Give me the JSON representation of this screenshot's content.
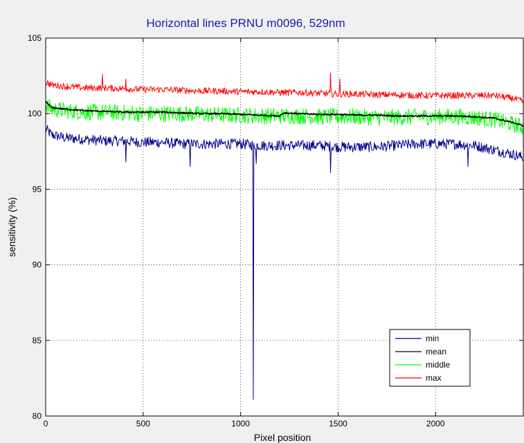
{
  "chart_data": {
    "type": "line",
    "title": "Horizontal lines PRNU m0096, 529nm",
    "xlabel": "Pixel position",
    "ylabel": "sensitivity (%)",
    "xlim": [
      0,
      2450
    ],
    "ylim": [
      80,
      105
    ],
    "x_ticks": [
      0,
      500,
      1000,
      1500,
      2000
    ],
    "y_ticks": [
      80,
      85,
      90,
      95,
      100,
      105
    ],
    "grid": true,
    "legend_position": "bottom-right",
    "series": [
      {
        "name": "min",
        "color": "#00008b",
        "noise": 0.35,
        "x": [
          0,
          30,
          100,
          200,
          300,
          400,
          500,
          600,
          700,
          800,
          900,
          1000,
          1100,
          1200,
          1300,
          1400,
          1500,
          1600,
          1700,
          1800,
          1900,
          2000,
          2100,
          2200,
          2300,
          2400,
          2450
        ],
        "y": [
          99.0,
          98.6,
          98.4,
          98.3,
          98.2,
          98.2,
          98.1,
          98.1,
          98.0,
          98.0,
          98.0,
          98.0,
          97.9,
          97.9,
          97.9,
          97.9,
          97.8,
          97.8,
          97.8,
          97.9,
          98.0,
          98.0,
          98.0,
          97.9,
          97.6,
          97.3,
          97.1
        ],
        "spikes": [
          [
            410,
            96.8
          ],
          [
            740,
            96.5
          ],
          [
            1065,
            81.1
          ],
          [
            1080,
            96.7
          ],
          [
            1460,
            96.1
          ],
          [
            2165,
            96.5
          ]
        ]
      },
      {
        "name": "mean",
        "color": "#000000",
        "noise": 0.05,
        "x": [
          0,
          30,
          100,
          200,
          300,
          400,
          500,
          600,
          700,
          800,
          900,
          1000,
          1100,
          1200,
          1220,
          1300,
          1400,
          1500,
          1600,
          1700,
          1800,
          1900,
          2000,
          2100,
          2200,
          2300,
          2400,
          2450
        ],
        "y": [
          100.8,
          100.4,
          100.3,
          100.2,
          100.15,
          100.1,
          100.1,
          100.1,
          100.05,
          100.0,
          100.0,
          99.95,
          99.9,
          99.85,
          100.05,
          100.0,
          99.95,
          99.95,
          99.9,
          99.9,
          99.85,
          99.85,
          99.85,
          99.85,
          99.8,
          99.7,
          99.4,
          99.2
        ],
        "spikes": []
      },
      {
        "name": "middle",
        "color": "#00ff00",
        "noise": 0.55,
        "x": [
          0,
          30,
          100,
          200,
          300,
          400,
          500,
          600,
          700,
          800,
          900,
          1000,
          1100,
          1200,
          1300,
          1400,
          1500,
          1600,
          1700,
          1800,
          1900,
          2000,
          2100,
          2200,
          2300,
          2400,
          2450
        ],
        "y": [
          100.6,
          100.3,
          100.2,
          100.1,
          100.1,
          100.05,
          100.0,
          100.0,
          100.0,
          99.95,
          99.9,
          99.9,
          99.85,
          99.85,
          99.85,
          99.8,
          99.8,
          99.8,
          99.75,
          99.75,
          99.8,
          99.8,
          99.8,
          99.75,
          99.6,
          99.3,
          99.1
        ],
        "spikes": []
      },
      {
        "name": "max",
        "color": "#ff0000",
        "noise": 0.22,
        "x": [
          0,
          30,
          100,
          200,
          300,
          400,
          500,
          600,
          700,
          800,
          900,
          1000,
          1100,
          1200,
          1300,
          1400,
          1500,
          1600,
          1700,
          1800,
          1900,
          2000,
          2100,
          2200,
          2300,
          2400,
          2450
        ],
        "y": [
          102.1,
          101.9,
          101.8,
          101.7,
          101.7,
          101.65,
          101.6,
          101.6,
          101.55,
          101.5,
          101.5,
          101.45,
          101.45,
          101.4,
          101.4,
          101.35,
          101.3,
          101.3,
          101.25,
          101.25,
          101.2,
          101.2,
          101.2,
          101.2,
          101.2,
          101.0,
          100.8
        ],
        "spikes": [
          [
            290,
            102.6
          ],
          [
            410,
            102.3
          ],
          [
            1460,
            102.7
          ],
          [
            1510,
            102.3
          ]
        ]
      }
    ]
  }
}
